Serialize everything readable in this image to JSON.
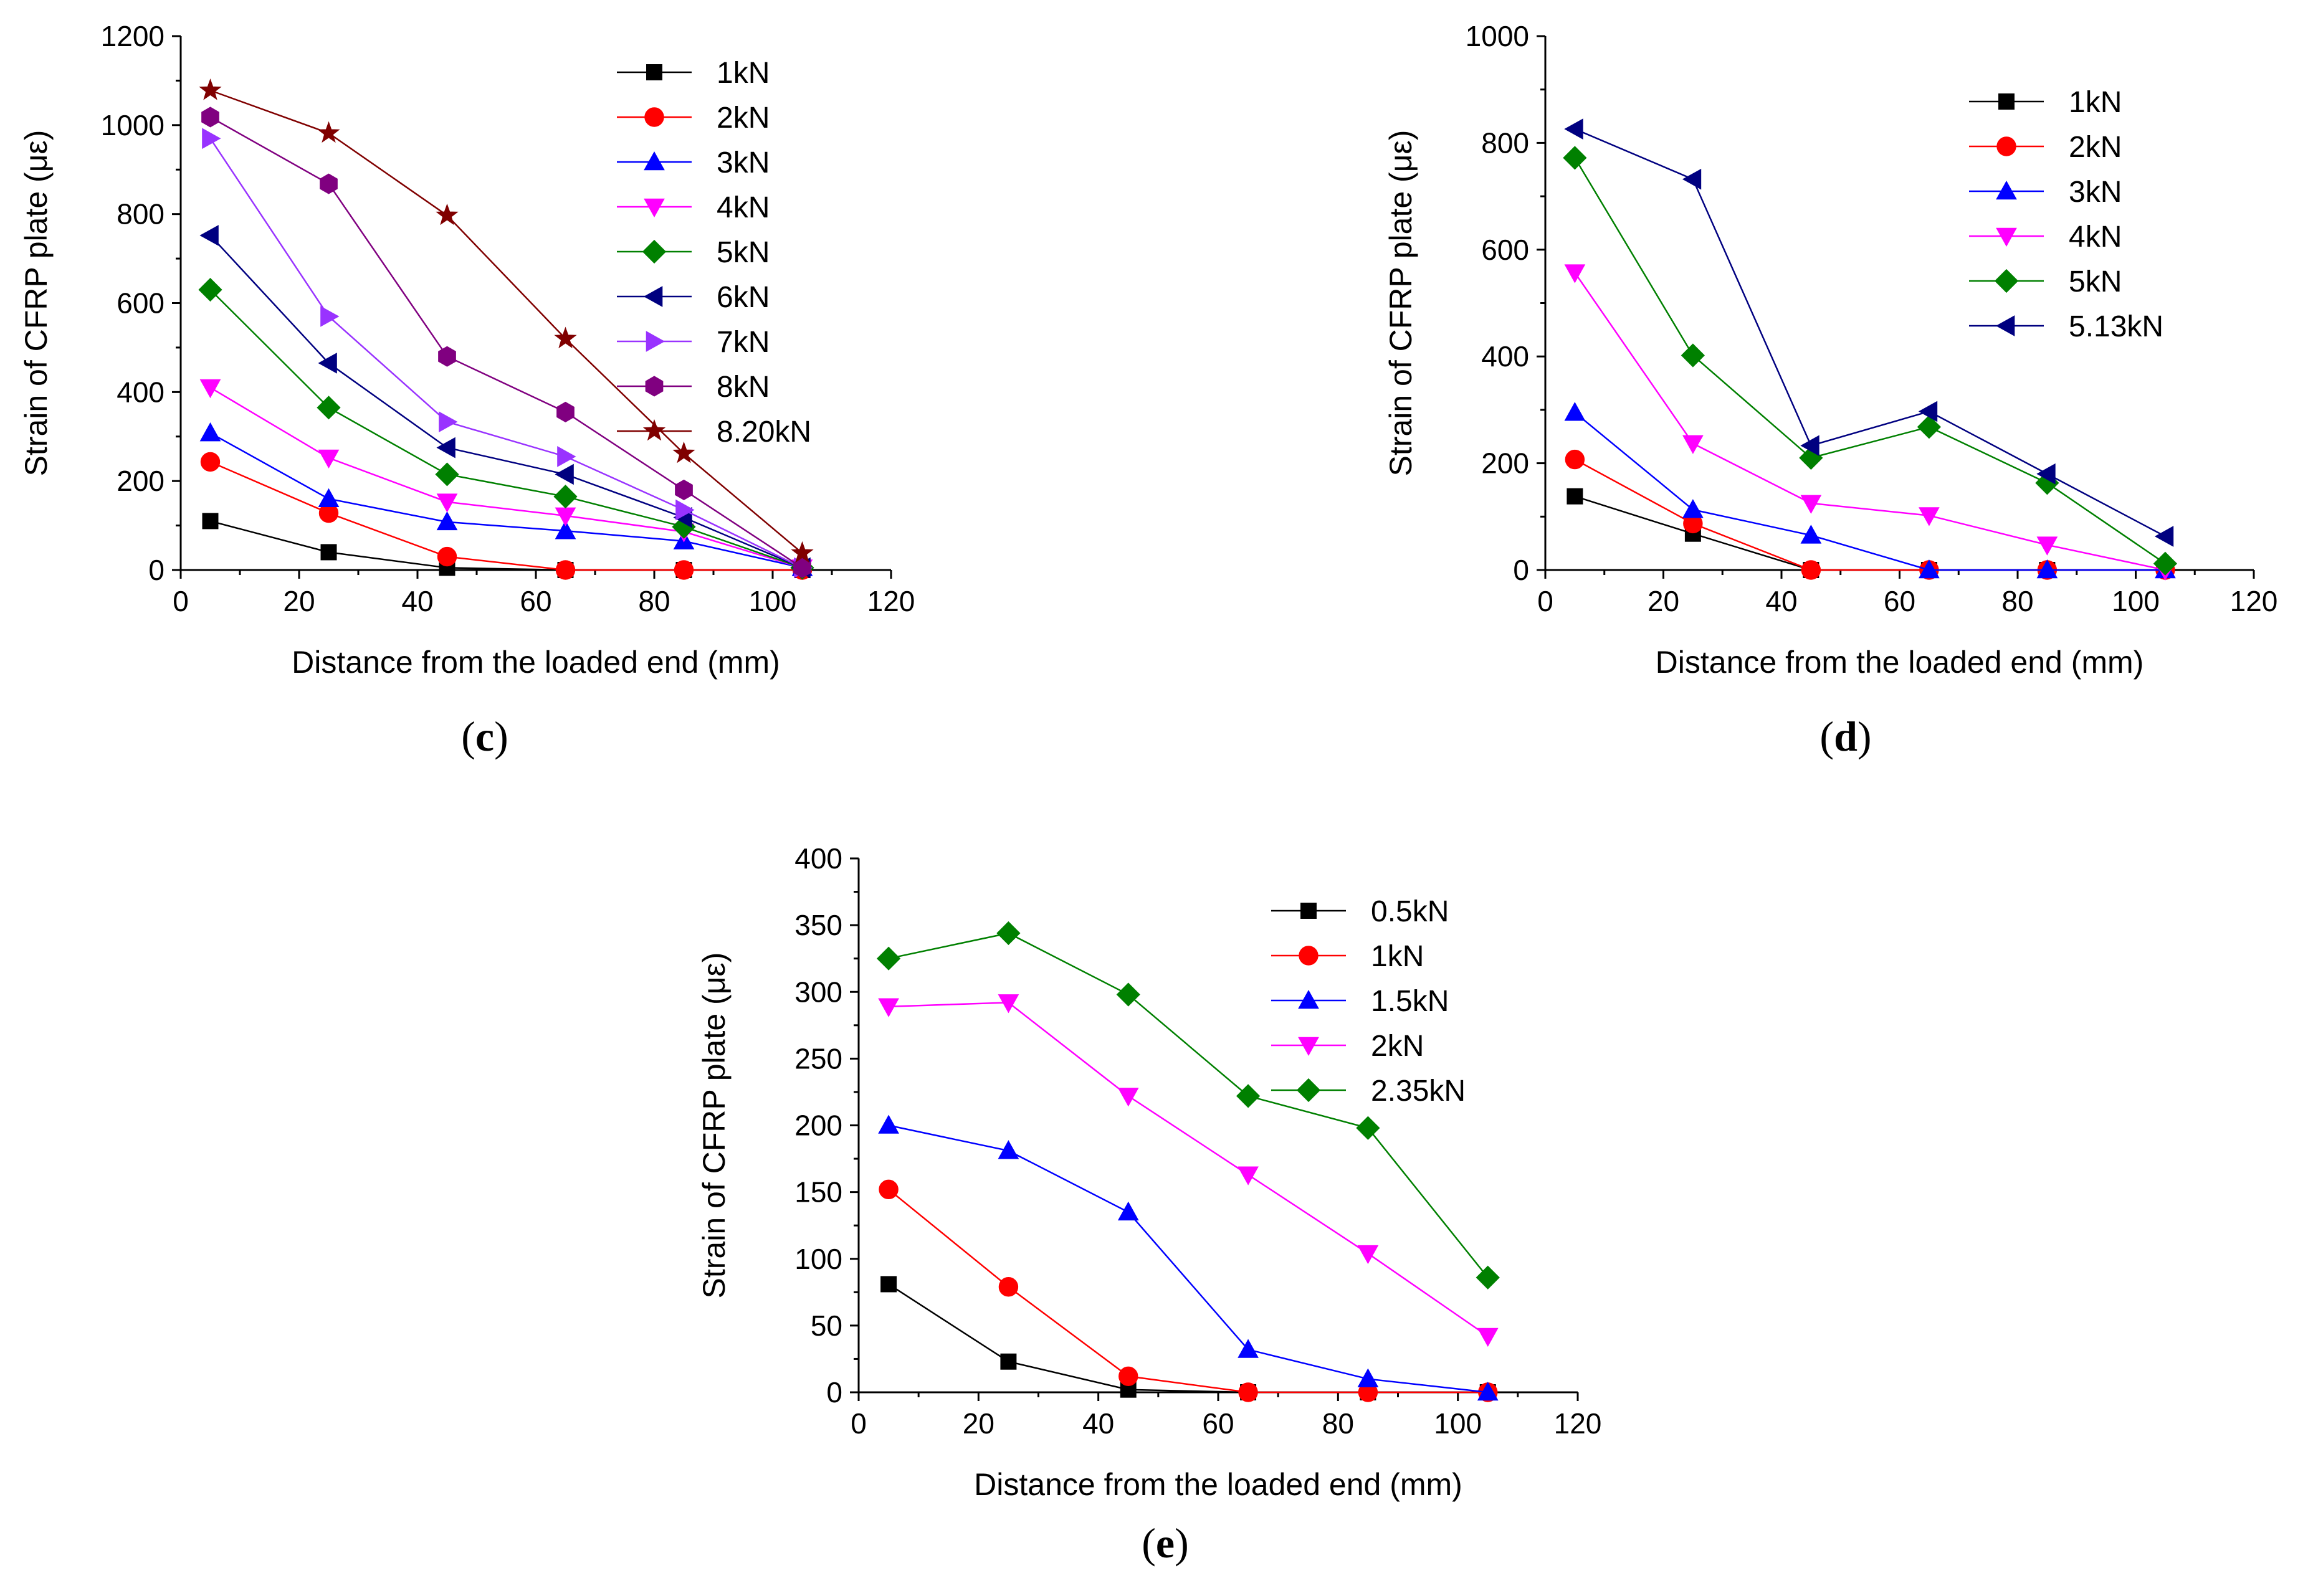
{
  "chart_data": [
    {
      "id": "c",
      "type": "line",
      "panel_label": "c",
      "title": "",
      "xlabel": "Distance from the loaded end (mm)",
      "ylabel": "Strain of CFRP plate (με)",
      "xlim": [
        0,
        120
      ],
      "ylim": [
        0,
        1200
      ],
      "xticks": [
        0,
        20,
        40,
        60,
        80,
        100,
        120
      ],
      "yticks": [
        0,
        200,
        400,
        600,
        800,
        1000,
        1200
      ],
      "grid": false,
      "legend_position": "top-right",
      "x": [
        5,
        25,
        45,
        65,
        85,
        105
      ],
      "series": [
        {
          "name": "1kN",
          "values": [
            110,
            40,
            5,
            0,
            0,
            0
          ],
          "color": "#000000",
          "marker": "square"
        },
        {
          "name": "2kN",
          "values": [
            243,
            128,
            30,
            0,
            0,
            0
          ],
          "color": "#ff0000",
          "marker": "circle"
        },
        {
          "name": "3kN",
          "values": [
            308,
            160,
            108,
            88,
            65,
            5
          ],
          "color": "#0000ff",
          "marker": "triangle-up"
        },
        {
          "name": "4kN",
          "values": [
            410,
            252,
            153,
            122,
            86,
            5
          ],
          "color": "#ff00ff",
          "marker": "triangle-down"
        },
        {
          "name": "5kN",
          "values": [
            630,
            365,
            215,
            165,
            97,
            5
          ],
          "color": "#008000",
          "marker": "diamond"
        },
        {
          "name": "6kN",
          "values": [
            752,
            465,
            275,
            215,
            118,
            5
          ],
          "color": "#000080",
          "marker": "triangle-left"
        },
        {
          "name": "7kN",
          "values": [
            970,
            570,
            333,
            255,
            135,
            5
          ],
          "color": "#9933ff",
          "marker": "triangle-right"
        },
        {
          "name": "8kN",
          "values": [
            1018,
            868,
            480,
            355,
            180,
            5
          ],
          "color": "#800080",
          "marker": "hexagon"
        },
        {
          "name": "8.20kN",
          "values": [
            1078,
            982,
            797,
            520,
            262,
            38
          ],
          "color": "#800000",
          "marker": "star"
        }
      ]
    },
    {
      "id": "d",
      "type": "line",
      "panel_label": "d",
      "title": "",
      "xlabel": "Distance from the loaded end (mm)",
      "ylabel": "Strain of CFRP plate (με)",
      "xlim": [
        0,
        120
      ],
      "ylim": [
        0,
        1000
      ],
      "xticks": [
        0,
        20,
        40,
        60,
        80,
        100,
        120
      ],
      "yticks": [
        0,
        200,
        400,
        600,
        800,
        1000
      ],
      "grid": false,
      "legend_position": "top-right",
      "x": [
        5,
        25,
        45,
        65,
        85,
        105
      ],
      "series": [
        {
          "name": "1kN",
          "values": [
            138,
            68,
            0,
            0,
            0,
            0
          ],
          "color": "#000000",
          "marker": "square"
        },
        {
          "name": "2kN",
          "values": [
            207,
            87,
            0,
            0,
            0,
            0
          ],
          "color": "#ff0000",
          "marker": "circle"
        },
        {
          "name": "3kN",
          "values": [
            295,
            113,
            65,
            0,
            0,
            0
          ],
          "color": "#0000ff",
          "marker": "triangle-up"
        },
        {
          "name": "4kN",
          "values": [
            557,
            237,
            125,
            102,
            47,
            0
          ],
          "color": "#ff00ff",
          "marker": "triangle-down"
        },
        {
          "name": "5kN",
          "values": [
            772,
            402,
            210,
            268,
            163,
            12
          ],
          "color": "#008000",
          "marker": "diamond"
        },
        {
          "name": "5.13kN",
          "values": [
            826,
            732,
            233,
            297,
            180,
            63
          ],
          "color": "#000080",
          "marker": "triangle-left"
        }
      ]
    },
    {
      "id": "e",
      "type": "line",
      "panel_label": "e",
      "title": "",
      "xlabel": "Distance from the loaded end (mm)",
      "ylabel": "Strain of CFRP plate (με)",
      "xlim": [
        0,
        120
      ],
      "ylim": [
        0,
        400
      ],
      "xticks": [
        0,
        20,
        40,
        60,
        80,
        100,
        120
      ],
      "yticks": [
        0,
        50,
        100,
        150,
        200,
        250,
        300,
        350,
        400
      ],
      "grid": false,
      "legend_position": "top-right",
      "x": [
        5,
        25,
        45,
        65,
        85,
        105
      ],
      "series": [
        {
          "name": "0.5kN",
          "values": [
            81,
            23,
            2,
            0,
            0,
            0
          ],
          "color": "#000000",
          "marker": "square"
        },
        {
          "name": "1kN",
          "values": [
            152,
            79,
            12,
            0,
            0,
            0
          ],
          "color": "#ff0000",
          "marker": "circle"
        },
        {
          "name": "1.5kN",
          "values": [
            200,
            181,
            135,
            32,
            10,
            0
          ],
          "color": "#0000ff",
          "marker": "triangle-up"
        },
        {
          "name": "2kN",
          "values": [
            289,
            292,
            222,
            163,
            104,
            42
          ],
          "color": "#ff00ff",
          "marker": "triangle-down"
        },
        {
          "name": "2.35kN",
          "values": [
            325,
            344,
            298,
            222,
            198,
            86
          ],
          "color": "#008000",
          "marker": "diamond"
        }
      ]
    }
  ]
}
